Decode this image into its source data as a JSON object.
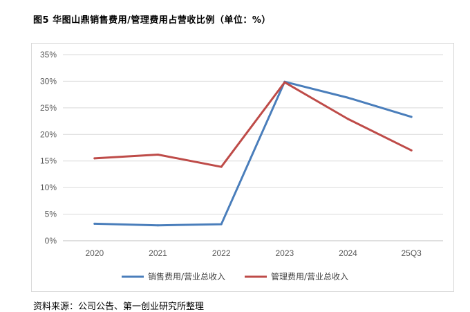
{
  "figure": {
    "title": "图5 华图山鼎销售费用/管理费用占营收比例（单位：%）",
    "source": "资料来源：公司公告、第一创业研究所整理"
  },
  "chart_data": {
    "type": "line",
    "title": "",
    "xlabel": "",
    "ylabel": "",
    "categories": [
      "2020",
      "2021",
      "2022",
      "2023",
      "2024",
      "25Q3"
    ],
    "y_ticks": [
      "0%",
      "5%",
      "10%",
      "15%",
      "20%",
      "25%",
      "30%",
      "35%"
    ],
    "ylim": [
      0,
      35
    ],
    "grid": true,
    "legend_position": "bottom",
    "series": [
      {
        "name": "销售费用/营业总收入",
        "color": "#4a7ebb",
        "values": [
          3.2,
          2.9,
          3.1,
          29.9,
          26.9,
          23.3
        ]
      },
      {
        "name": "管理费用/营业总收入",
        "color": "#be4b48",
        "values": [
          15.5,
          16.2,
          13.9,
          29.8,
          22.9,
          17.0
        ]
      }
    ]
  }
}
